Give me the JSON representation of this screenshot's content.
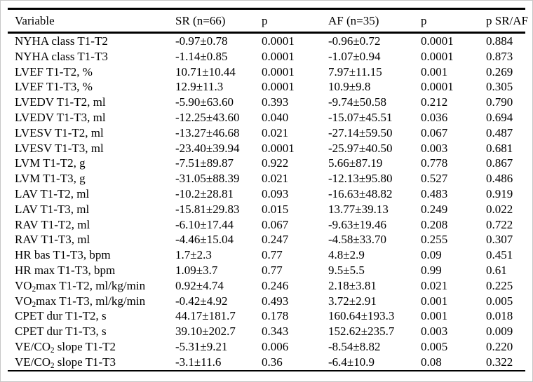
{
  "table": {
    "columns": [
      "Variable",
      "SR (n=66)",
      "p",
      "AF (n=35)",
      "p",
      "p SR/AF"
    ],
    "rows": [
      [
        "NYHA class T1-T2",
        "-0.97±0.78",
        "0.0001",
        "-0.96±0.72",
        "0.0001",
        "0.884"
      ],
      [
        "NYHA class T1-T3",
        "-1.14±0.85",
        "0.0001",
        "-1.07±0.94",
        "0.0001",
        "0.873"
      ],
      [
        "LVEF T1-T2, %",
        "10.71±10.44",
        "0.0001",
        "7.97±11.15",
        "0.001",
        "0.269"
      ],
      [
        "LVEF T1-T3, %",
        "12.9±11.3",
        "0.0001",
        "10.9±9.8",
        "0.0001",
        "0.305"
      ],
      [
        "LVEDV T1-T2, ml",
        "-5.90±63.60",
        "0.393",
        "-9.74±50.58",
        "0.212",
        "0.790"
      ],
      [
        "LVEDV T1-T3, ml",
        "-12.25±43.60",
        "0.040",
        "-15.07±45.51",
        "0.036",
        "0.694"
      ],
      [
        "LVESV T1-T2, ml",
        "-13.27±46.68",
        "0.021",
        "-27.14±59.50",
        "0.067",
        "0.487"
      ],
      [
        "LVESV T1-T3, ml",
        "-23.40±39.94",
        "0.0001",
        "-25.97±40.50",
        "0.003",
        "0.681"
      ],
      [
        "LVM T1-T2, g",
        "-7.51±89.87",
        "0.922",
        "5.66±87.19",
        "0.778",
        "0.867"
      ],
      [
        "LVM T1-T3, g",
        "-31.05±88.39",
        "0.021",
        "-12.13±95.80",
        "0.527",
        "0.486"
      ],
      [
        "LAV T1-T2, ml",
        "-10.2±28.81",
        "0.093",
        "-16.63±48.82",
        "0.483",
        "0.919"
      ],
      [
        "LAV T1-T3, ml",
        "-15.81±29.83",
        "0.015",
        "13.77±39.13",
        "0.249",
        "0.022"
      ],
      [
        "RAV T1-T2, ml",
        "-6.10±17.44",
        "0.067",
        "-9.63±19.46",
        "0.208",
        "0.722"
      ],
      [
        "RAV T1-T3, ml",
        "-4.46±15.04",
        "0.247",
        "-4.58±33.70",
        "0.255",
        "0.307"
      ],
      [
        "HR bas T1-T3, bpm",
        "1.7±2.3",
        "0.77",
        "4.8±2.9",
        "0.09",
        "0.451"
      ],
      [
        "HR max T1-T3, bpm",
        "1.09±3.7",
        "0.77",
        "9.5±5.5",
        "0.99",
        "0.61"
      ],
      [
        "VO₂max T1-T2, ml/kg/min",
        "0.92±4.74",
        "0.246",
        "2.18±3.81",
        "0.021",
        "0.225"
      ],
      [
        "VO₂max T1-T3, ml/kg/min",
        "-0.42±4.92",
        "0.493",
        "3.72±2.91",
        "0.001",
        "0.005"
      ],
      [
        "CPET dur T1-T2, s",
        "44.17±181.7",
        "0.178",
        "160.64±193.3",
        "0.001",
        "0.018"
      ],
      [
        "CPET dur T1-T3, s",
        "39.10±202.7",
        "0.343",
        "152.62±235.7",
        "0.003",
        "0.009"
      ],
      [
        "VE/CO₂ slope T1-T2",
        "-5.31±9.21",
        "0.006",
        "-8.54±8.82",
        "0.005",
        "0.220"
      ],
      [
        "VE/CO₂ slope T1-T3",
        "-3.1±11.6",
        "0.36",
        "-6.4±10.9",
        "0.08",
        "0.322"
      ]
    ]
  }
}
